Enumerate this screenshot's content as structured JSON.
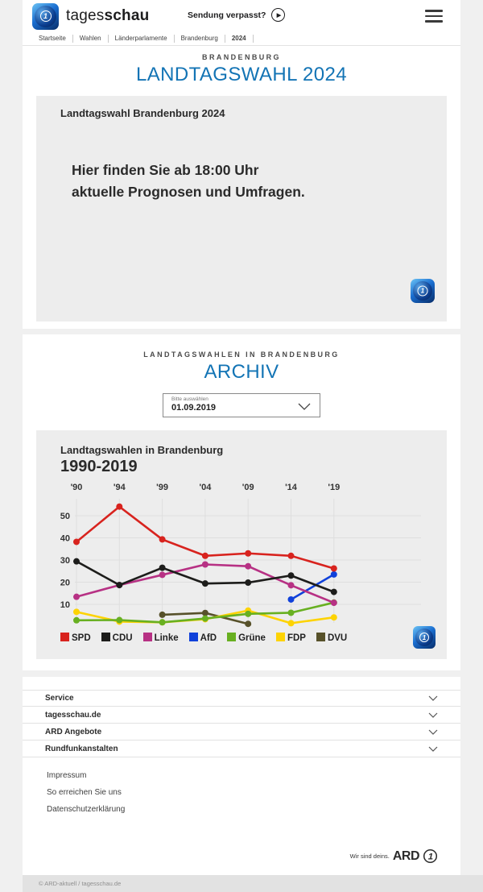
{
  "header": {
    "brand_regular": "tages",
    "brand_bold": "schau",
    "sendung_verpasst": "Sendung verpasst?"
  },
  "breadcrumb": [
    "Startseite",
    "Wahlen",
    "Länderparlamente",
    "Brandenburg",
    "2024"
  ],
  "hero": {
    "kicker": "BRANDENBURG",
    "title": "LANDTAGSWAHL 2024"
  },
  "teaser": {
    "title": "Landtagswahl Brandenburg 2024",
    "line1": "Hier finden Sie ab 18:00 Uhr",
    "line2": "aktuelle Prognosen und Umfragen."
  },
  "archive": {
    "kicker": "LANDTAGSWAHLEN IN BRANDENBURG",
    "title": "ARCHIV",
    "select_label": "Bitte auswählen",
    "select_value": "01.09.2019"
  },
  "chart_data": {
    "type": "line",
    "title": "Landtagswahlen in Brandenburg",
    "subtitle": "1990-2019",
    "categories": [
      "'90",
      "'94",
      "'99",
      "'04",
      "'09",
      "'14",
      "'19"
    ],
    "yticks": [
      10,
      20,
      30,
      40,
      50
    ],
    "ylim": [
      0,
      58
    ],
    "unit": "percent",
    "grid": true,
    "legend_position": "bottom",
    "series": [
      {
        "name": "SPD",
        "color": "#d8231e",
        "values": [
          38.2,
          54.1,
          39.3,
          31.9,
          33.0,
          31.9,
          26.2
        ]
      },
      {
        "name": "CDU",
        "color": "#1d1d1b",
        "values": [
          29.4,
          18.7,
          26.5,
          19.4,
          19.8,
          23.0,
          15.6
        ]
      },
      {
        "name": "Linke",
        "color": "#b73184",
        "values": [
          13.4,
          18.7,
          23.3,
          28.0,
          27.2,
          18.6,
          10.7
        ]
      },
      {
        "name": "AfD",
        "color": "#1041da",
        "values": [
          null,
          null,
          null,
          null,
          null,
          12.2,
          23.5
        ]
      },
      {
        "name": "Grüne",
        "color": "#68b021",
        "values": [
          2.8,
          2.9,
          1.9,
          3.6,
          5.7,
          6.2,
          10.8
        ]
      },
      {
        "name": "FDP",
        "color": "#fdd303",
        "values": [
          6.6,
          2.2,
          1.9,
          3.3,
          7.2,
          1.5,
          4.1
        ]
      },
      {
        "name": "DVU",
        "color": "#57512a",
        "values": [
          null,
          null,
          5.3,
          6.1,
          1.2,
          null,
          null
        ]
      }
    ]
  },
  "footer": {
    "accordion": [
      "Service",
      "tagesschau.de",
      "ARD Angebote",
      "Rundfunkanstalten"
    ],
    "links": [
      "Impressum",
      "So erreichen Sie uns",
      "Datenschutzerklärung"
    ],
    "brand_claim": "Wir sind deins.",
    "brand_name": "ARD",
    "copyright": "© ARD-aktuell / tagesschau.de"
  },
  "colors": {
    "accent_blue": "#1374b5",
    "page_bg": "#f0f0f0",
    "panel_gray": "#ededed"
  }
}
